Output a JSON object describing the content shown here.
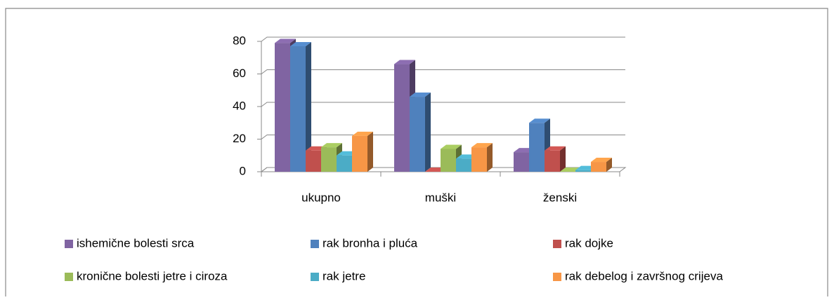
{
  "chart_data": {
    "type": "bar3d",
    "categories": [
      "ukupno",
      "muški",
      "ženski"
    ],
    "series": [
      {
        "name": "ishemične bolesti srca",
        "color": "#8064a2",
        "values": [
          79,
          66,
          12
        ]
      },
      {
        "name": "rak bronha i pluća",
        "color": "#4f81bd",
        "values": [
          77,
          46,
          30
        ]
      },
      {
        "name": "rak dojke",
        "color": "#c0504d",
        "values": [
          13,
          0,
          13
        ]
      },
      {
        "name": "kronične bolesti jetre i ciroza",
        "color": "#9bbb59",
        "values": [
          15,
          14,
          0
        ]
      },
      {
        "name": "rak jetre",
        "color": "#4bacc6",
        "values": [
          10,
          8,
          1
        ]
      },
      {
        "name": "rak debelog i završnog crijeva",
        "color": "#f79646",
        "values": [
          22,
          15,
          6
        ]
      }
    ],
    "ylim": [
      0,
      80
    ],
    "yticks": [
      0,
      20,
      40,
      60,
      80
    ],
    "grid": true,
    "legend": "bottom"
  }
}
